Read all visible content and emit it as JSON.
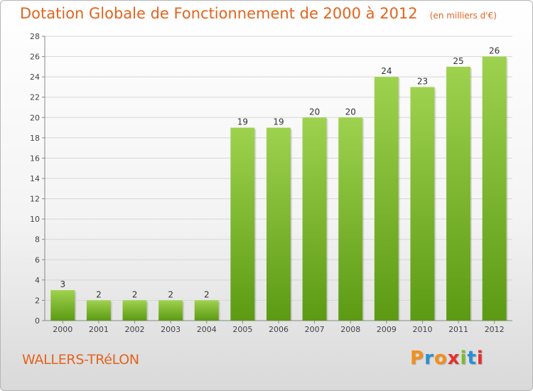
{
  "title": "Dotation Globale de Fonctionnement de 2000 à 2012",
  "unit_note": "(en milliers d'€)",
  "commune": "WALLERS-TRéLON",
  "logo": {
    "text": "Proxiti",
    "letter_colors": [
      "#f39019",
      "#2b8fd3",
      "#f39019",
      "#e3322b",
      "#7cbb2b",
      "#2b8fd3",
      "#e3322b"
    ]
  },
  "colors": {
    "accent": "#e3641e",
    "bar_top": "#9ed24e",
    "bar_bottom": "#5c9a13",
    "grid": "#d6d6d6"
  },
  "chart_data": {
    "type": "bar",
    "title": "Dotation Globale de Fonctionnement de 2000 à 2012",
    "categories": [
      "2000",
      "2001",
      "2002",
      "2003",
      "2004",
      "2005",
      "2006",
      "2007",
      "2008",
      "2009",
      "2010",
      "2011",
      "2012"
    ],
    "values": [
      3,
      2,
      2,
      2,
      2,
      19,
      19,
      20,
      20,
      24,
      23,
      25,
      26
    ],
    "ylim": [
      0,
      28
    ],
    "yticks": [
      0,
      2,
      4,
      6,
      8,
      10,
      12,
      14,
      16,
      18,
      20,
      22,
      24,
      26,
      28
    ],
    "grid": true,
    "data_labels": true
  }
}
